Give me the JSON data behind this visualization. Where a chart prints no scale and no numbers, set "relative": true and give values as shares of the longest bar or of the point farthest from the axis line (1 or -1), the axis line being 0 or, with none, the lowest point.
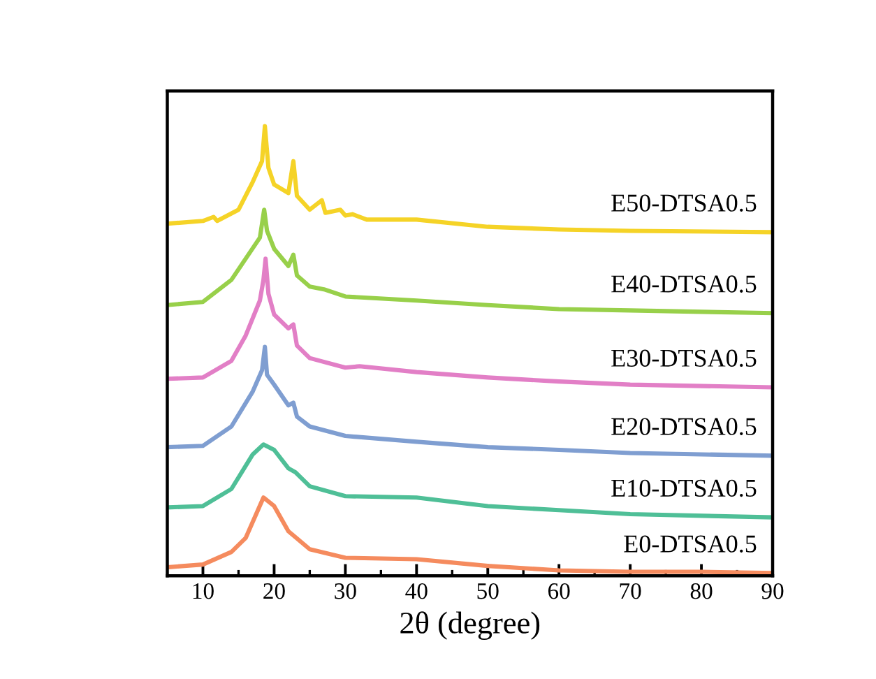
{
  "chart_data": {
    "type": "line",
    "relative": true,
    "xlabel": "2θ (degree)",
    "xlim": [
      5,
      90
    ],
    "xticks": [
      10,
      {
        "value": 15,
        "label": null
      },
      20,
      {
        "value": 25,
        "label": null
      },
      30,
      {
        "value": 35,
        "label": null
      },
      40,
      {
        "value": 45,
        "label": null
      },
      50,
      {
        "value": 55,
        "label": null
      },
      60,
      {
        "value": 65,
        "label": null
      },
      70,
      {
        "value": 75,
        "label": null
      },
      80,
      {
        "value": 85,
        "label": null
      },
      90
    ],
    "grid": false,
    "legend": false,
    "marker": "none",
    "line_style": "solid",
    "series": [
      {
        "name": "E0-DTSA0.5",
        "color": "#f58b5e",
        "x": [
          5,
          10,
          14,
          16,
          18.5,
          20,
          22,
          25,
          30,
          40,
          50,
          60,
          70,
          80,
          90
        ],
        "values": [
          0.019,
          0.025,
          0.053,
          0.084,
          0.174,
          0.155,
          0.099,
          0.059,
          0.04,
          0.037,
          0.022,
          0.012,
          0.009,
          0.009,
          0.006
        ]
      },
      {
        "name": "E10-DTSA0.5",
        "color": "#4fbf97",
        "x": [
          5,
          10,
          14,
          17,
          18.5,
          20,
          22,
          23,
          25,
          30,
          40,
          50,
          60,
          70,
          90
        ],
        "values": [
          0.152,
          0.155,
          0.193,
          0.27,
          0.292,
          0.28,
          0.239,
          0.23,
          0.199,
          0.177,
          0.174,
          0.155,
          0.146,
          0.137,
          0.13
        ]
      },
      {
        "name": "E20-DTSA0.5",
        "color": "#7f9ed1",
        "x": [
          5,
          10,
          14,
          17,
          18.3,
          18.7,
          19,
          20,
          22,
          22.7,
          23.2,
          25,
          30,
          40,
          50,
          60,
          70,
          90
        ],
        "values": [
          0.286,
          0.289,
          0.332,
          0.41,
          0.457,
          0.509,
          0.447,
          0.425,
          0.379,
          0.385,
          0.354,
          0.332,
          0.311,
          0.298,
          0.286,
          0.28,
          0.273,
          0.267
        ]
      },
      {
        "name": "E30-DTSA0.5",
        "color": "#e27fc6",
        "x": [
          5,
          10,
          14,
          16,
          18,
          18.5,
          18.8,
          19.2,
          20,
          22,
          22.7,
          23.2,
          25,
          30,
          32,
          40,
          50,
          60,
          70,
          90
        ],
        "values": [
          0.438,
          0.441,
          0.478,
          0.534,
          0.612,
          0.658,
          0.705,
          0.627,
          0.581,
          0.55,
          0.559,
          0.512,
          0.484,
          0.463,
          0.466,
          0.453,
          0.441,
          0.432,
          0.425,
          0.419
        ]
      },
      {
        "name": "E40-DTSA0.5",
        "color": "#98d04a",
        "x": [
          5,
          10,
          14,
          16,
          18,
          18.6,
          19,
          20,
          22,
          22.7,
          23.2,
          25,
          27,
          30,
          40,
          50,
          60,
          70,
          90
        ],
        "values": [
          0.602,
          0.609,
          0.658,
          0.705,
          0.752,
          0.814,
          0.767,
          0.727,
          0.689,
          0.714,
          0.668,
          0.643,
          0.637,
          0.621,
          0.612,
          0.602,
          0.593,
          0.59,
          0.584
        ]
      },
      {
        "name": "E50-DTSA0.5",
        "color": "#f5d327",
        "x": [
          5,
          10,
          11.5,
          12,
          15,
          17,
          18.3,
          18.7,
          19.2,
          20,
          22,
          22.7,
          23.2,
          25,
          26.7,
          27.2,
          29.3,
          30,
          31,
          33,
          40,
          50,
          60,
          70,
          90
        ],
        "values": [
          0.783,
          0.789,
          0.798,
          0.789,
          0.814,
          0.876,
          0.922,
          1,
          0.907,
          0.87,
          0.851,
          0.922,
          0.845,
          0.814,
          0.835,
          0.807,
          0.814,
          0.801,
          0.804,
          0.792,
          0.792,
          0.776,
          0.77,
          0.767,
          0.764
        ]
      }
    ]
  }
}
